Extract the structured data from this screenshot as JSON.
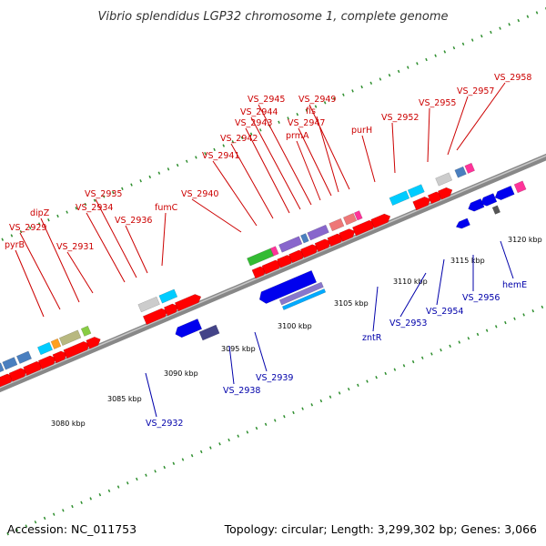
{
  "title": "Vibrio splendidus LGP32 chromosome 1, complete genome",
  "accession": "Accession: NC_011753",
  "topology": "Topology: circular; Length: 3,299,302 bp; Genes: 3,066",
  "colors": {
    "forward_label": "#cc0000",
    "reverse_label": "#0000aa",
    "backbone": "#888888",
    "tick": "#2f8f2f",
    "cds_forward": "#ff0000",
    "cds_reverse": "#0000ee"
  },
  "scale_labels": [
    "3080 kbp",
    "3085 kbp",
    "3090 kbp",
    "3095 kbp",
    "3100 kbp",
    "3105 kbp",
    "3110 kbp",
    "3115 kbp",
    "3120 kbp"
  ],
  "forward_labels": [
    "pyrB",
    "VS_2929",
    "dipZ",
    "VS_2931",
    "VS_2934",
    "VS_2935",
    "VS_2936",
    "fumC",
    "VS_2940",
    "VS_2941",
    "VS_2942",
    "VS_2943",
    "VS_2944",
    "VS_2945",
    "prmA",
    "VS_2947",
    "fis",
    "VS_2949",
    "purH",
    "VS_2952",
    "VS_2955",
    "VS_2957",
    "VS_2958"
  ],
  "reverse_labels": [
    "VS_2932",
    "VS_2938",
    "VS_2939",
    "zntR",
    "VS_2953",
    "VS_2954",
    "VS_2956",
    "hemE"
  ]
}
